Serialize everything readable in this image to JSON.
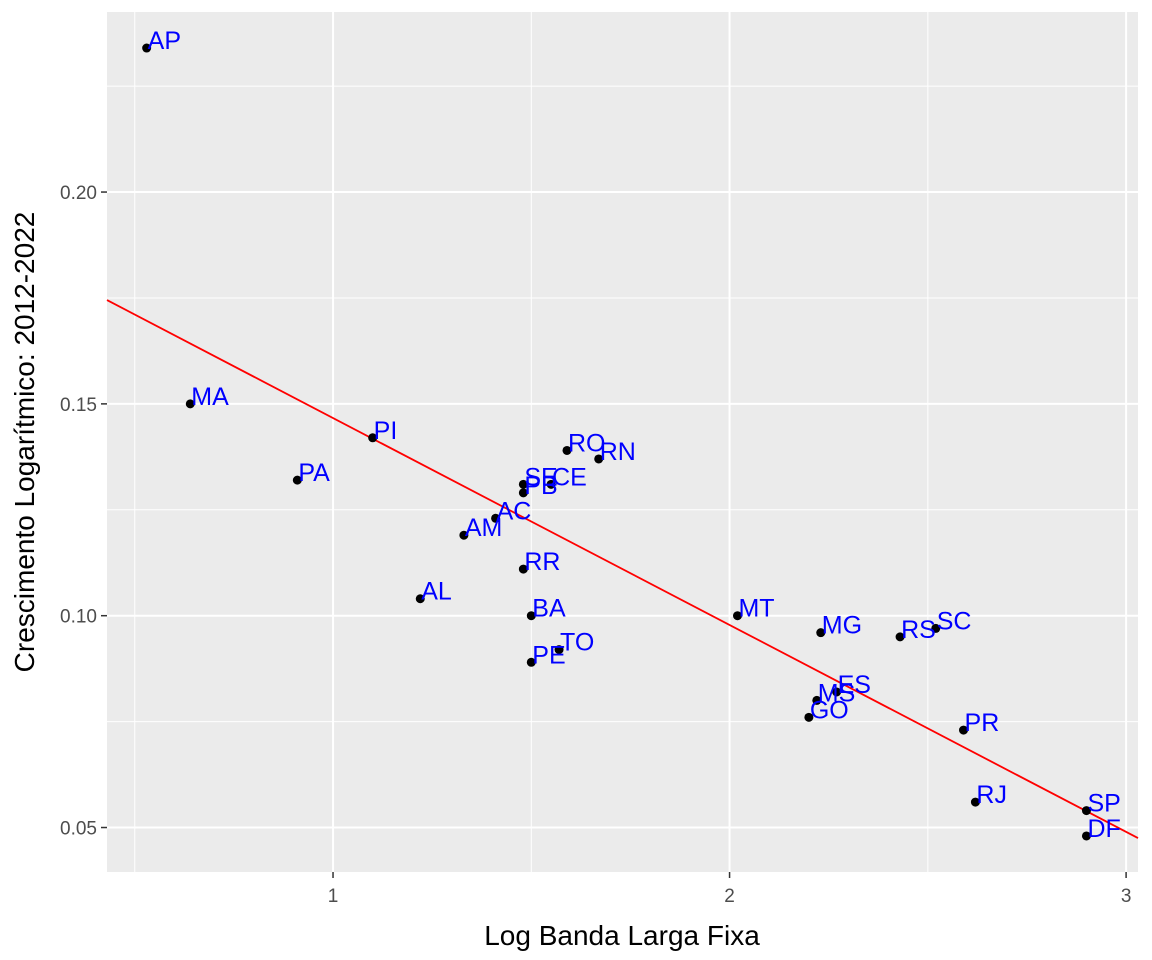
{
  "colors": {
    "panel": "#ebebeb",
    "grid_major": "#ffffff",
    "point": "#000000",
    "label": "#0000ff",
    "fit_line": "#ff0000",
    "tick_text": "#4d4d4d",
    "tick_mark": "#333333"
  },
  "chart_data": {
    "type": "scatter",
    "xlabel": "Log Banda Larga Fixa",
    "ylabel": "Crescimento Logarítmico: 2012-2022",
    "xlim": [
      0.43,
      3.03
    ],
    "ylim": [
      0.0395,
      0.2425
    ],
    "x_ticks": [
      1,
      2,
      3
    ],
    "x_tick_labels": [
      "1",
      "2",
      "3"
    ],
    "y_ticks": [
      0.05,
      0.1,
      0.15,
      0.2
    ],
    "y_tick_labels": [
      "0.05",
      "0.10",
      "0.15",
      "0.20"
    ],
    "grid": true,
    "legend": "none",
    "points": [
      {
        "label": "AP",
        "x": 0.53,
        "y": 0.234
      },
      {
        "label": "MA",
        "x": 0.64,
        "y": 0.15
      },
      {
        "label": "PA",
        "x": 0.91,
        "y": 0.132
      },
      {
        "label": "PI",
        "x": 1.1,
        "y": 0.142
      },
      {
        "label": "AL",
        "x": 1.22,
        "y": 0.104
      },
      {
        "label": "AM",
        "x": 1.33,
        "y": 0.119
      },
      {
        "label": "AC",
        "x": 1.41,
        "y": 0.123
      },
      {
        "label": "RR",
        "x": 1.48,
        "y": 0.111
      },
      {
        "label": "SE",
        "x": 1.48,
        "y": 0.131
      },
      {
        "label": "PB",
        "x": 1.48,
        "y": 0.129
      },
      {
        "label": "CE",
        "x": 1.55,
        "y": 0.131
      },
      {
        "label": "BA",
        "x": 1.5,
        "y": 0.1
      },
      {
        "label": "PE",
        "x": 1.5,
        "y": 0.089
      },
      {
        "label": "TO",
        "x": 1.57,
        "y": 0.092
      },
      {
        "label": "RO",
        "x": 1.59,
        "y": 0.139
      },
      {
        "label": "RN",
        "x": 1.67,
        "y": 0.137
      },
      {
        "label": "MT",
        "x": 2.02,
        "y": 0.1
      },
      {
        "label": "MG",
        "x": 2.23,
        "y": 0.096
      },
      {
        "label": "MS",
        "x": 2.22,
        "y": 0.08
      },
      {
        "label": "ES",
        "x": 2.27,
        "y": 0.082
      },
      {
        "label": "GO",
        "x": 2.2,
        "y": 0.076
      },
      {
        "label": "RS",
        "x": 2.43,
        "y": 0.095
      },
      {
        "label": "SC",
        "x": 2.52,
        "y": 0.097
      },
      {
        "label": "PR",
        "x": 2.59,
        "y": 0.073
      },
      {
        "label": "RJ",
        "x": 2.62,
        "y": 0.056
      },
      {
        "label": "SP",
        "x": 2.9,
        "y": 0.054
      },
      {
        "label": "DF",
        "x": 2.9,
        "y": 0.048
      }
    ],
    "fit_line": {
      "x": [
        0.43,
        3.03
      ],
      "y": [
        0.1745,
        0.0475
      ]
    }
  }
}
